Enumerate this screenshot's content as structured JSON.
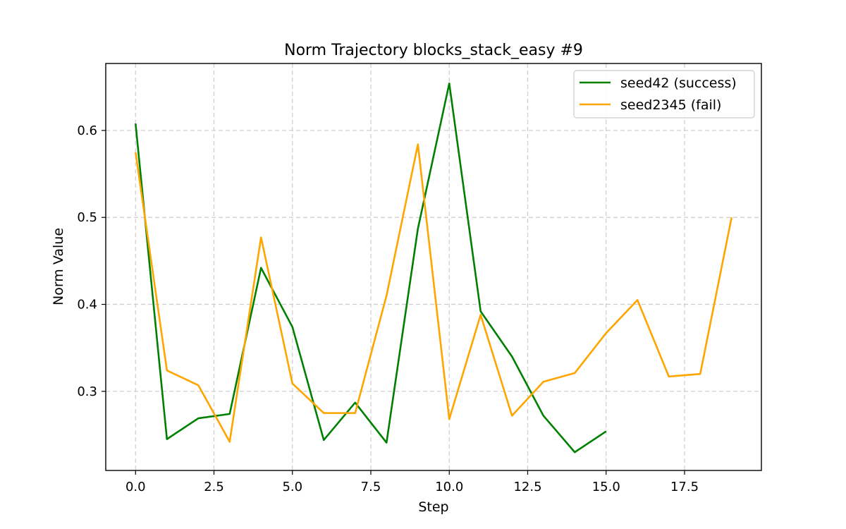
{
  "chart_data": {
    "type": "line",
    "title": "Norm Trajectory blocks_stack_easy #9",
    "xlabel": "Step",
    "ylabel": "Norm Value",
    "xlim": [
      -0.95,
      19.95
    ],
    "ylim": [
      0.209,
      0.677
    ],
    "xticks": [
      0,
      2.5,
      5,
      7.5,
      10,
      12.5,
      15,
      17.5
    ],
    "xtick_labels": [
      "0.0",
      "2.5",
      "5.0",
      "7.5",
      "10.0",
      "12.5",
      "15.0",
      "17.5"
    ],
    "yticks": [
      0.3,
      0.4,
      0.5,
      0.6
    ],
    "ytick_labels": [
      "0.3",
      "0.4",
      "0.5",
      "0.6"
    ],
    "grid": true,
    "legend_position": "top-right",
    "series": [
      {
        "name": "seed42 (success)",
        "color": "#008000",
        "x": [
          0,
          1,
          2,
          3,
          4,
          5,
          6,
          7,
          8,
          9,
          10,
          11,
          12,
          13,
          14,
          15
        ],
        "y": [
          0.608,
          0.245,
          0.269,
          0.274,
          0.442,
          0.374,
          0.244,
          0.287,
          0.241,
          0.487,
          0.654,
          0.392,
          0.34,
          0.272,
          0.23,
          0.254
        ]
      },
      {
        "name": "seed2345 (fail)",
        "color": "#ffa500",
        "x": [
          0,
          1,
          2,
          3,
          4,
          5,
          6,
          7,
          8,
          9,
          10,
          11,
          12,
          13,
          14,
          15,
          16,
          17,
          18,
          19
        ],
        "y": [
          0.575,
          0.324,
          0.307,
          0.242,
          0.477,
          0.309,
          0.275,
          0.275,
          0.41,
          0.584,
          0.268,
          0.388,
          0.272,
          0.311,
          0.321,
          0.367,
          0.405,
          0.317,
          0.32,
          0.5
        ]
      }
    ]
  }
}
